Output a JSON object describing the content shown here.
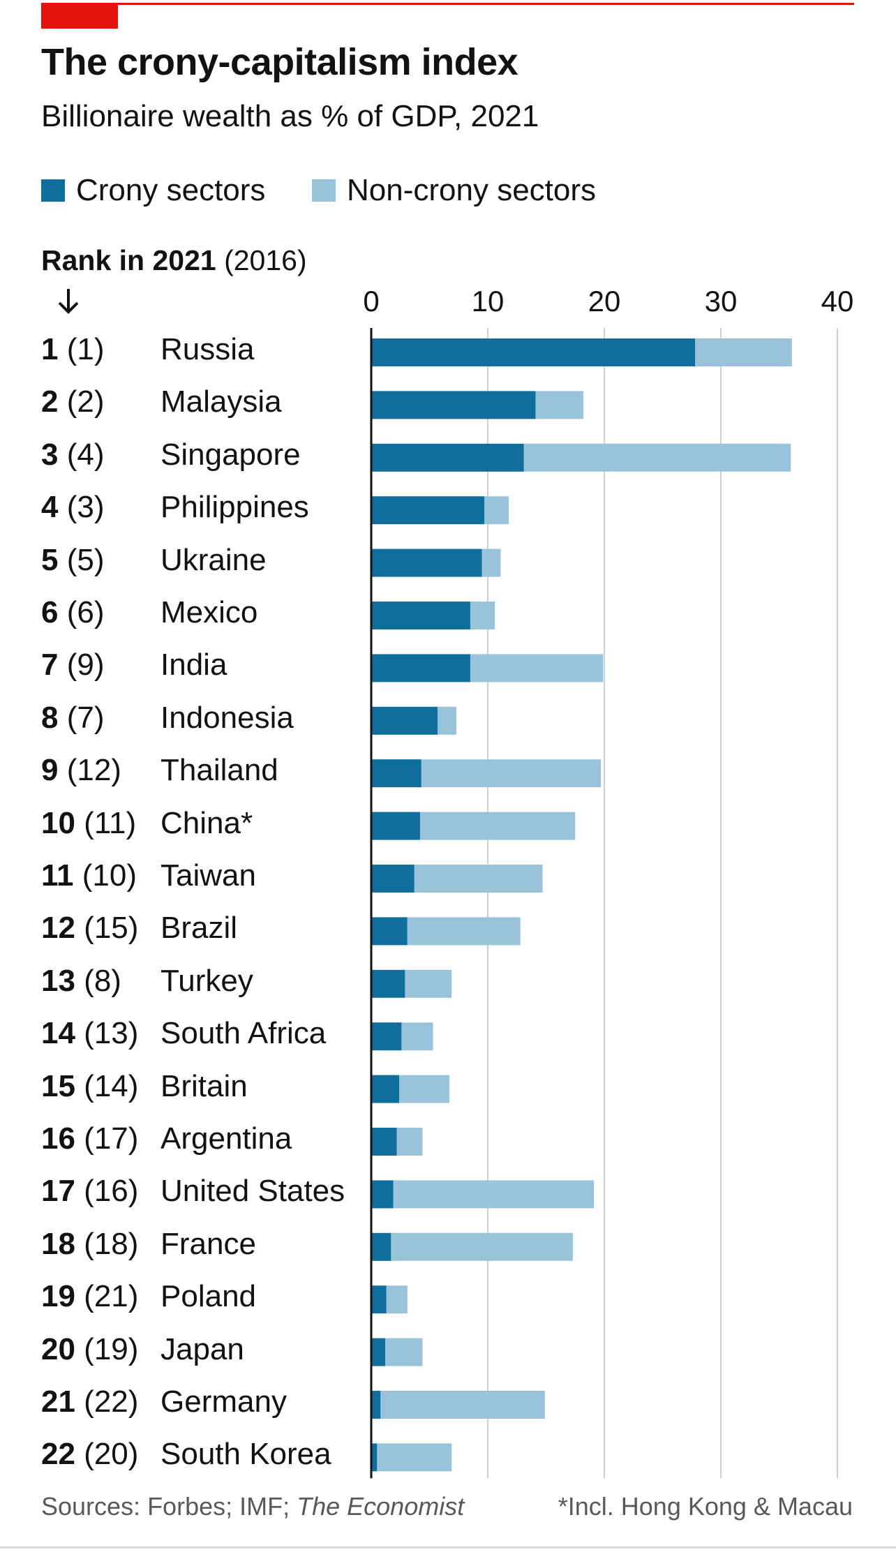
{
  "header": {
    "title": "The crony-capitalism index",
    "subtitle": "Billionaire wealth as % of GDP, 2021"
  },
  "colors": {
    "accent": "#e3120b",
    "crony": "#0f6e9b",
    "non_crony": "#98c3da",
    "grid": "#c7d3db",
    "axis": "#121212"
  },
  "legend": {
    "crony_label": "Crony sectors",
    "non_crony_label": "Non-crony sectors"
  },
  "rank_heading": {
    "bold": "Rank in 2021",
    "rest": "(2016)"
  },
  "chart_data": {
    "type": "bar",
    "orientation": "horizontal",
    "stacked": true,
    "title": "The crony-capitalism index",
    "subtitle": "Billionaire wealth as % of GDP, 2021",
    "xlabel": "",
    "ylabel": "Rank in 2021 (2016)",
    "xlim": [
      0,
      40
    ],
    "xticks": [
      0,
      10,
      20,
      30,
      40
    ],
    "grid": true,
    "legend_position": "top-left",
    "categories": [
      "Russia",
      "Malaysia",
      "Singapore",
      "Philippines",
      "Ukraine",
      "Mexico",
      "India",
      "Indonesia",
      "Thailand",
      "China*",
      "Taiwan",
      "Brazil",
      "Turkey",
      "South Africa",
      "Britain",
      "Argentina",
      "United States",
      "France",
      "Poland",
      "Japan",
      "Germany",
      "South Korea"
    ],
    "rank_2021": [
      "1",
      "2",
      "3",
      "4",
      "5",
      "6",
      "7",
      "8",
      "9",
      "10",
      "11",
      "12",
      "13",
      "14",
      "15",
      "16",
      "17",
      "18",
      "19",
      "20",
      "21",
      "22"
    ],
    "rank_2016": [
      "(1)",
      "(2)",
      "(4)",
      "(3)",
      "(5)",
      "(6)",
      "(9)",
      "(7)",
      "(12)",
      "(11)",
      "(10)",
      "(15)",
      "(8)",
      "(13)",
      "(14)",
      "(17)",
      "(16)",
      "(18)",
      "(21)",
      "(19)",
      "(22)",
      "(20)"
    ],
    "series": [
      {
        "name": "Crony sectors",
        "values": [
          27.8,
          14.1,
          13.1,
          9.7,
          9.5,
          8.5,
          8.5,
          5.7,
          4.3,
          4.2,
          3.7,
          3.1,
          2.9,
          2.6,
          2.4,
          2.2,
          1.9,
          1.7,
          1.3,
          1.2,
          0.8,
          0.5
        ]
      },
      {
        "name": "Non-crony sectors",
        "values": [
          8.3,
          4.1,
          22.9,
          2.1,
          1.6,
          2.1,
          11.4,
          1.6,
          15.4,
          13.3,
          11.0,
          9.7,
          4.0,
          2.7,
          4.3,
          2.2,
          17.2,
          15.6,
          1.8,
          3.2,
          14.1,
          6.4
        ]
      }
    ],
    "footnote": "*Incl. Hong Kong & Macau",
    "sources_prefix": "Sources: Forbes; IMF; ",
    "sources_italic": "The Economist"
  }
}
